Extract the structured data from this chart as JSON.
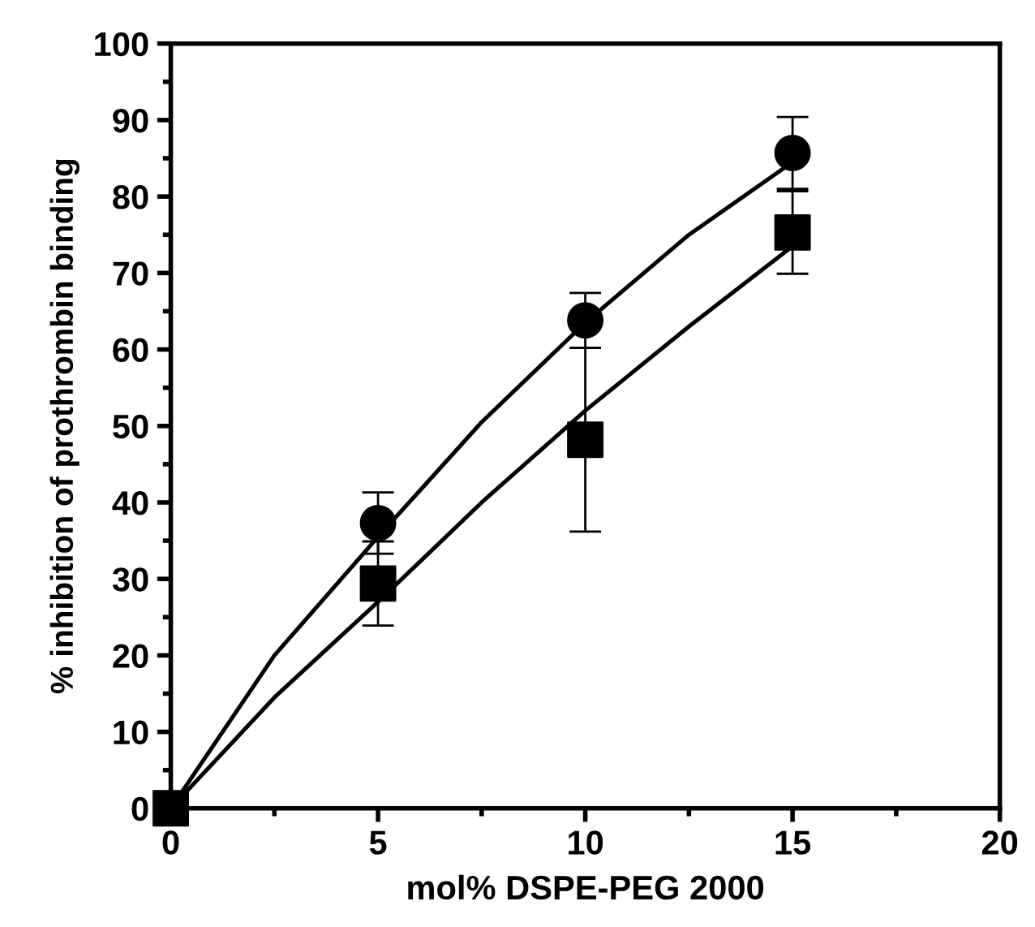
{
  "chart_data": {
    "type": "scatter",
    "xlabel": "mol% DSPE-PEG 2000",
    "ylabel": "% inhibition of prothrombin binding",
    "xlim": [
      0,
      20
    ],
    "xticks": [
      0,
      5,
      10,
      15,
      20
    ],
    "ylim": [
      0,
      100
    ],
    "yticks": [
      0,
      10,
      20,
      30,
      40,
      50,
      60,
      70,
      80,
      90,
      100
    ],
    "grid": false,
    "legend": false,
    "series": [
      {
        "type": "line",
        "color": "#000000",
        "marker": "none",
        "line_style": "solid",
        "x": [
          0,
          2.5,
          5,
          7.5,
          10,
          12.5,
          15
        ],
        "values": [
          0,
          20,
          35.5,
          50.5,
          63.5,
          75,
          84.5
        ]
      },
      {
        "type": "line",
        "color": "#000000",
        "marker": "none",
        "line_style": "solid",
        "x": [
          0,
          2.5,
          5,
          7.5,
          10,
          12.5,
          15
        ],
        "values": [
          0,
          14.5,
          27,
          40,
          52,
          63,
          73.5
        ]
      },
      {
        "color": "#000000",
        "marker": "circle",
        "x": [
          5,
          10,
          15
        ],
        "values": [
          37.3,
          63.8,
          85.7
        ],
        "errors": [
          4,
          3.6,
          4.7
        ]
      },
      {
        "color": "#000000",
        "marker": "square",
        "x": [
          0,
          5,
          10,
          15
        ],
        "values": [
          0,
          29.4,
          48.2,
          75.3
        ],
        "errors": [
          null,
          5.5,
          12,
          5.4
        ]
      }
    ]
  }
}
